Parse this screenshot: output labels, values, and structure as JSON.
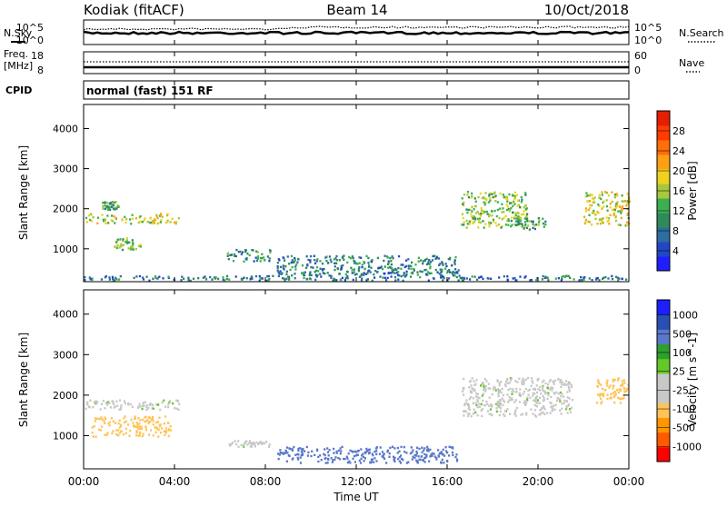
{
  "header": {
    "station": "Kodiak (fitACF)",
    "beam": "Beam 14",
    "date": "10/Oct/2018"
  },
  "strip_labels": {
    "nsky": "N.Sky",
    "nsearch": "N.Search",
    "freq": "Freq.",
    "freq_unit": "[MHz]",
    "nave": "Nave",
    "cpid": "CPID",
    "cpid_value": "normal (fast) 151 RF"
  },
  "noise_axis": {
    "left_ticks": [
      "10^5",
      "10^0"
    ],
    "right_ticks": [
      "10^5",
      "10^0"
    ]
  },
  "freq_axis": {
    "left_ticks": [
      "18",
      "8"
    ],
    "right_ticks": [
      "60",
      "0"
    ]
  },
  "xaxis": {
    "label": "Time UT",
    "ticks": [
      "00:00",
      "04:00",
      "08:00",
      "12:00",
      "16:00",
      "20:00",
      "00:00"
    ]
  },
  "colors": {
    "power_scale": [
      "#1e1eff",
      "#2346c8",
      "#2d6e9e",
      "#2f8a5a",
      "#3cb050",
      "#a8c83c",
      "#f0d21e",
      "#ffa014",
      "#ff6e0a",
      "#ff3c00",
      "#e61e00"
    ],
    "velocity_scale": [
      "#ff0000",
      "#ff5a00",
      "#ff9600",
      "#ffc35a",
      "#c8c8c8",
      "#c8c8c8",
      "#64c828",
      "#2da02d",
      "#5a78c8",
      "#2850b4",
      "#1e1eff"
    ]
  },
  "chart_data": [
    {
      "type": "heatmap",
      "title": "Power",
      "ylabel": "Slant Range [km]",
      "ylim": [
        180,
        4600
      ],
      "yticks": [
        "1000",
        "2000",
        "3000",
        "4000"
      ],
      "xlabel": "",
      "xlim_hours": [
        0,
        24
      ],
      "colorbar": {
        "label": "Power [dB]",
        "range": [
          0,
          32
        ],
        "ticks": [
          "4",
          "8",
          "12",
          "16",
          "20",
          "24",
          "28"
        ]
      },
      "regions": [
        {
          "t0": 0.05,
          "t1": 4.2,
          "r0": 1650,
          "r1": 1900,
          "value": 17
        },
        {
          "t0": 1.3,
          "t1": 2.6,
          "r0": 1000,
          "r1": 1300,
          "value": 14
        },
        {
          "t0": 0.8,
          "t1": 1.5,
          "r0": 2000,
          "r1": 2200,
          "value": 12
        },
        {
          "t0": 6.3,
          "t1": 8.3,
          "r0": 700,
          "r1": 1000,
          "value": 10
        },
        {
          "t0": 8.5,
          "t1": 16.5,
          "r0": 350,
          "r1": 850,
          "value": 9
        },
        {
          "t0": 16.6,
          "t1": 19.5,
          "r0": 1550,
          "r1": 2450,
          "value": 15
        },
        {
          "t0": 19.0,
          "t1": 20.3,
          "r0": 1500,
          "r1": 1800,
          "value": 12
        },
        {
          "t0": 22.0,
          "t1": 24.0,
          "r0": 1600,
          "r1": 2450,
          "value": 18
        },
        {
          "t0": 0.0,
          "t1": 24.0,
          "r0": 230,
          "r1": 350,
          "value": 8
        }
      ]
    },
    {
      "type": "heatmap",
      "title": "Velocity",
      "ylabel": "Slant Range [km]",
      "ylim": [
        180,
        4600
      ],
      "yticks": [
        "1000",
        "2000",
        "3000",
        "4000"
      ],
      "xlabel": "Time UT",
      "xlim_hours": [
        0,
        24
      ],
      "colorbar": {
        "label": "Velocity [m s^-1]",
        "ticks": [
          "1000",
          "500",
          "100",
          "25",
          "-25",
          "-100",
          "-500",
          "-1000"
        ]
      },
      "regions": [
        {
          "t0": 0.05,
          "t1": 4.2,
          "r0": 1650,
          "r1": 1900,
          "value": 0
        },
        {
          "t0": 0.3,
          "t1": 3.8,
          "r0": 1000,
          "r1": 1500,
          "value": -150
        },
        {
          "t0": 6.3,
          "t1": 8.3,
          "r0": 750,
          "r1": 900,
          "value": 0
        },
        {
          "t0": 8.5,
          "t1": 16.5,
          "r0": 350,
          "r1": 750,
          "value": 150
        },
        {
          "t0": 16.6,
          "t1": 21.5,
          "r0": 1500,
          "r1": 2450,
          "value": 0
        },
        {
          "t0": 22.5,
          "t1": 24.0,
          "r0": 1800,
          "r1": 2450,
          "value": -200
        }
      ]
    }
  ]
}
